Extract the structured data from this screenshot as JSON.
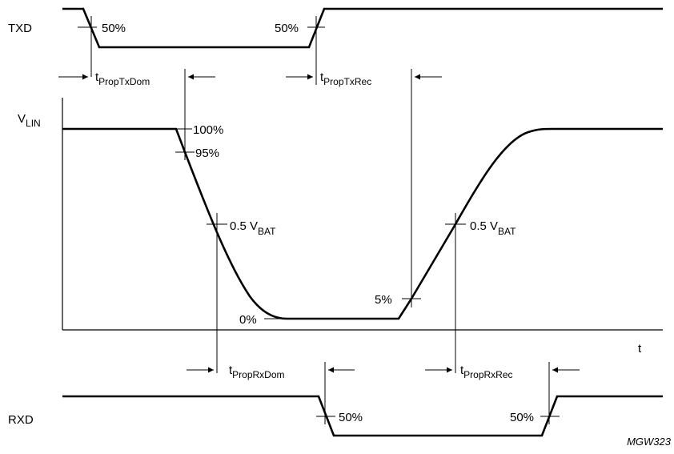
{
  "signals": {
    "txd": "TXD",
    "vlin_main": "V",
    "vlin_sub": "LIN",
    "rxd": "RXD",
    "t_axis": "t"
  },
  "txd_marks": {
    "fall_50": "50%",
    "rise_50": "50%"
  },
  "vlin_marks": {
    "p100": "100%",
    "p95": "95%",
    "p0": "0%",
    "p5": "5%",
    "half_fall_main": "0.5 V",
    "half_fall_sub": "BAT",
    "half_rise_main": "0.5 V",
    "half_rise_sub": "BAT"
  },
  "rxd_marks": {
    "fall_50": "50%",
    "rise_50": "50%"
  },
  "timings": {
    "prop_tx_dom_main": "t",
    "prop_tx_dom_sub": "PropTxDom",
    "prop_tx_rec_main": "t",
    "prop_tx_rec_sub": "PropTxRec",
    "prop_rx_dom_main": "t",
    "prop_rx_dom_sub": "PropRxDom",
    "prop_rx_rec_main": "t",
    "prop_rx_rec_sub": "PropRxRec"
  },
  "figure_code": "MGW323"
}
